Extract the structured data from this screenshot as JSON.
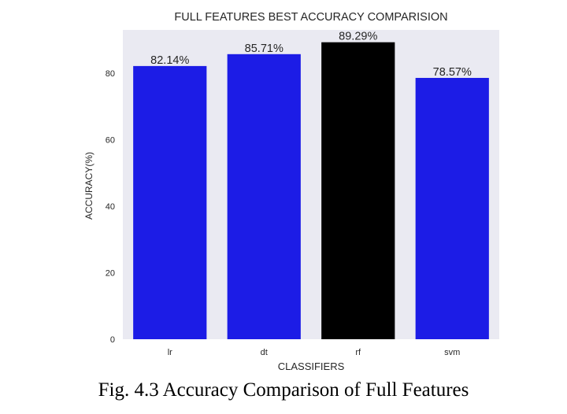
{
  "caption": "Fig. 4.3 Accuracy Comparison of Full Features",
  "chart_data": {
    "type": "bar",
    "title": "FULL FEATURES BEST ACCURACY COMPARISION",
    "xlabel": "CLASSIFIERS",
    "ylabel": "ACCURACY(%)",
    "categories": [
      "lr",
      "dt",
      "rf",
      "svm"
    ],
    "values": [
      82.14,
      85.71,
      89.29,
      78.57
    ],
    "value_labels": [
      "82.14%",
      "85.71%",
      "89.29%",
      "78.57%"
    ],
    "bar_colors": [
      "#1c1ce6",
      "#1c1ce6",
      "#000000",
      "#1c1ce6"
    ],
    "ylim": [
      0,
      93
    ],
    "yticks": [
      0,
      20,
      40,
      60,
      80
    ],
    "grid": false,
    "background": "#eaeaf2"
  }
}
